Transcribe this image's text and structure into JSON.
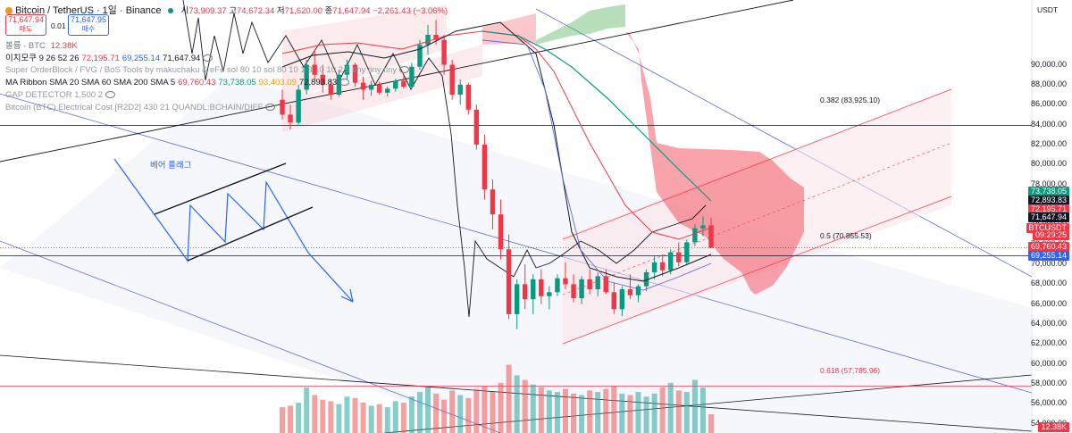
{
  "header": {
    "symbol": "Bitcoin / TetherUS · 1일 · Binance",
    "ohlc": {
      "o_label": "시",
      "o": "73,909.37",
      "h_label": "고",
      "h": "74,672.34",
      "l_label": "저",
      "l": "71,620.00",
      "c_label": "종",
      "c": "71,647.94",
      "chg": "−2,261.43 (−3.06%)"
    },
    "sell_price": "71,647.94",
    "sell_label": "매도",
    "spread": "0.01",
    "buy_price": "71,647.95",
    "buy_label": "매수",
    "volume_label": "볼륨 · BTC",
    "volume_value": "12.38K",
    "currency": "USDT"
  },
  "indicators": [
    {
      "name": "이치모쿠 9 26 52 26",
      "values": [
        "72,195.71",
        "69,255.14",
        "71,647.94"
      ],
      "colors": [
        "#f23645",
        "#2962ff",
        "#131722"
      ]
    },
    {
      "name": "Super OrderBlock / FVG / BoS Tools by makuchaku & eFe sol 80 10 sol 80 10 1 3 10 10 2 5 tiny tiny tiny",
      "values": [],
      "colors": []
    },
    {
      "name": "MA Ribbon SMA 20 SMA 60 SMA 200 SMA 5",
      "values": [
        "69,760.43",
        "73,738.05",
        "93,403.09",
        "72,893.83"
      ],
      "colors": [
        "#f23645",
        "#089981",
        "#ff9800",
        "#131722"
      ]
    },
    {
      "name": "GAP DETECTOR 1,500 2",
      "values": [],
      "colors": []
    },
    {
      "name": "Bitcoin (BTC) Electrical Cost [R2D2] 430 21 QUANDL:BCHAIN/DIFF",
      "values": [],
      "colors": []
    }
  ],
  "annotation": "베어 플래그",
  "fib_labels": [
    "0.382 (83,925.10)",
    "0.5 (70,855.53)",
    "0.618 (57,785.96)"
  ],
  "right_tags": [
    {
      "text": "73,738.05",
      "color": "#089981"
    },
    {
      "text": "72,893.83",
      "color": "#131722"
    },
    {
      "text": "72,195.71",
      "color": "#f23645"
    },
    {
      "text": "71,647.94",
      "color": "#131722"
    },
    {
      "text": "BTCUSDT",
      "color": "#f23645"
    },
    {
      "text": "09:29:25",
      "color": "#f23645"
    },
    {
      "text": "69,760.43",
      "color": "#f23645"
    },
    {
      "text": "69,255.14",
      "color": "#2962ff"
    },
    {
      "text": "12.38K",
      "color": "#f23645"
    }
  ],
  "colors": {
    "up": "#089981",
    "down": "#f23645",
    "kumo_red": "#f23645",
    "kumo_green": "#4caf50",
    "channel_blue": "#5b6ed6"
  },
  "chart_data": {
    "type": "candlestick",
    "y_axis_ticks": [
      "90,000.00",
      "88,000.00",
      "86,000.00",
      "84,000.00",
      "82,000.00",
      "80,000.00",
      "78,000.00",
      "76,000.00",
      "74,000.00",
      "72,000.00",
      "70,000.00",
      "68,000.00",
      "66,000.00",
      "64,000.00",
      "62,000.00",
      "60,000.00",
      "58,000.00",
      "56,000.00",
      "54,000.00"
    ],
    "ylim": [
      53000,
      93000
    ],
    "fib_levels": [
      83925.1,
      70855.53,
      57785.96
    ],
    "last_price": 71647.94,
    "candles": [
      [
        86500,
        87500,
        84500,
        85000
      ],
      [
        85000,
        86000,
        83500,
        84200
      ],
      [
        84200,
        88000,
        84000,
        87500
      ],
      [
        87500,
        90500,
        87000,
        90000
      ],
      [
        90000,
        91500,
        88500,
        89000
      ],
      [
        89000,
        90000,
        87200,
        88000
      ],
      [
        88000,
        88500,
        86500,
        87000
      ],
      [
        87000,
        89500,
        86800,
        89000
      ],
      [
        89000,
        90500,
        88500,
        90000
      ],
      [
        90000,
        90200,
        87800,
        88200
      ],
      [
        88200,
        88800,
        86500,
        87500
      ],
      [
        87500,
        88400,
        86900,
        88000
      ],
      [
        88000,
        88300,
        87000,
        87200
      ],
      [
        87200,
        87800,
        86800,
        87600
      ],
      [
        87600,
        88600,
        87300,
        88400
      ],
      [
        88400,
        88900,
        87600,
        87800
      ],
      [
        87800,
        90200,
        87600,
        89800
      ],
      [
        89800,
        92500,
        89500,
        92000
      ],
      [
        92000,
        94000,
        91000,
        93000
      ],
      [
        93000,
        94500,
        92000,
        92500
      ],
      [
        92500,
        93000,
        89000,
        90000
      ],
      [
        90000,
        90500,
        86500,
        87000
      ],
      [
        87000,
        88500,
        86000,
        88000
      ],
      [
        88000,
        88200,
        85000,
        85500
      ],
      [
        85500,
        86000,
        81500,
        82000
      ],
      [
        82000,
        83000,
        76500,
        77500
      ],
      [
        77500,
        78500,
        73500,
        75000
      ],
      [
        75000,
        76500,
        70500,
        71500
      ],
      [
        71500,
        73000,
        64500,
        65000
      ],
      [
        65000,
        68500,
        63500,
        68000
      ],
      [
        68000,
        70000,
        65500,
        66500
      ],
      [
        66500,
        69000,
        65000,
        68500
      ],
      [
        68500,
        69500,
        66000,
        66800
      ],
      [
        66800,
        67800,
        65500,
        67200
      ],
      [
        67200,
        69000,
        66800,
        68600
      ],
      [
        68600,
        70200,
        67500,
        68000
      ],
      [
        68000,
        69000,
        66200,
        66600
      ],
      [
        66600,
        68800,
        66000,
        68500
      ],
      [
        68500,
        69500,
        67000,
        67500
      ],
      [
        67500,
        69200,
        66800,
        68800
      ],
      [
        68800,
        69500,
        67000,
        67200
      ],
      [
        67200,
        68200,
        65000,
        65500
      ],
      [
        65500,
        67800,
        64800,
        67500
      ],
      [
        67500,
        69000,
        66500,
        66900
      ],
      [
        66900,
        68000,
        66200,
        67800
      ],
      [
        67800,
        69500,
        67300,
        69200
      ],
      [
        69200,
        70800,
        68500,
        70200
      ],
      [
        70200,
        71000,
        68800,
        69400
      ],
      [
        69400,
        71500,
        69000,
        71200
      ],
      [
        71200,
        72200,
        69800,
        70200
      ],
      [
        70200,
        72500,
        70000,
        72200
      ],
      [
        72200,
        74000,
        71800,
        73600
      ],
      [
        73600,
        74800,
        72800,
        73900
      ],
      [
        73900,
        74672,
        71620,
        71648
      ]
    ],
    "volume": [
      [
        17,
        18,
        20,
        30,
        25,
        22,
        21,
        19,
        24,
        23,
        20,
        18,
        19,
        17,
        21,
        20,
        24,
        27,
        30,
        26,
        22,
        28,
        25,
        23,
        29,
        31,
        27,
        33,
        45,
        38,
        35,
        32,
        30,
        28,
        27,
        29,
        26,
        25,
        28,
        27,
        29,
        31,
        26,
        25,
        27,
        24,
        26,
        30,
        33,
        28,
        27,
        35,
        30,
        12.38
      ]
    ]
  }
}
